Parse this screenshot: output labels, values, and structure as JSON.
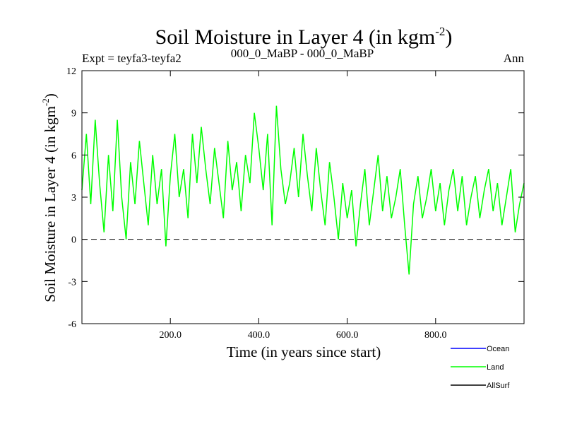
{
  "chart_data": {
    "type": "line",
    "title": "Soil Moisture in Layer 4 (in kgm",
    "title_sup": "-2",
    "title_close": ")",
    "subtitle_left": "Expt = teyfa3-teyfa2",
    "subtitle_center": "000_0_MaBP - 000_0_MaBP",
    "subtitle_right": "Ann",
    "xlabel": "Time (in years since start)",
    "ylabel": "Soil Moisture in Layer 4 (in kgm",
    "ylabel_sup": "-2",
    "ylabel_close": ")",
    "xlim": [
      0,
      1000
    ],
    "ylim": [
      -6,
      12
    ],
    "x_ticks": [
      200,
      400,
      600,
      800
    ],
    "x_tick_labels": [
      "200.0",
      "400.0",
      "600.0",
      "800.0"
    ],
    "y_ticks": [
      -6,
      -3,
      0,
      3,
      6,
      9,
      12
    ],
    "y_tick_labels": [
      "-6",
      "-3",
      "0",
      "3",
      "6",
      "9",
      "12"
    ],
    "zero_line": 0,
    "series": [
      {
        "name": "Land",
        "color": "#00ff00",
        "x": [
          0,
          10,
          20,
          30,
          40,
          50,
          60,
          70,
          80,
          90,
          100,
          110,
          120,
          130,
          140,
          150,
          160,
          170,
          180,
          190,
          200,
          210,
          220,
          230,
          240,
          250,
          260,
          270,
          280,
          290,
          300,
          310,
          320,
          330,
          340,
          350,
          360,
          370,
          380,
          390,
          400,
          410,
          420,
          430,
          440,
          450,
          460,
          470,
          480,
          490,
          500,
          510,
          520,
          530,
          540,
          550,
          560,
          570,
          580,
          590,
          600,
          610,
          620,
          630,
          640,
          650,
          660,
          670,
          680,
          690,
          700,
          710,
          720,
          730,
          740,
          750,
          760,
          770,
          780,
          790,
          800,
          810,
          820,
          830,
          840,
          850,
          860,
          870,
          880,
          890,
          900,
          910,
          920,
          930,
          940,
          950,
          960,
          970,
          980,
          990,
          1000
        ],
        "values": [
          3.5,
          7.5,
          2.5,
          8.5,
          4.0,
          0.5,
          6.0,
          2.0,
          8.5,
          3.0,
          0.0,
          5.5,
          2.5,
          7.0,
          4.0,
          1.0,
          6.0,
          2.5,
          5.0,
          -0.5,
          4.5,
          7.5,
          3.0,
          5.0,
          1.5,
          7.5,
          4.0,
          8.0,
          5.0,
          2.5,
          6.5,
          4.0,
          1.5,
          7.0,
          3.5,
          5.5,
          2.0,
          6.0,
          4.0,
          9.0,
          6.5,
          3.5,
          7.5,
          1.0,
          9.5,
          5.0,
          2.5,
          4.0,
          6.5,
          3.0,
          7.5,
          4.5,
          2.0,
          6.5,
          3.5,
          1.0,
          5.5,
          3.0,
          0.0,
          4.0,
          1.5,
          3.5,
          -0.5,
          2.5,
          5.0,
          1.0,
          3.5,
          6.0,
          2.0,
          4.5,
          1.5,
          3.0,
          5.0,
          1.0,
          -2.5,
          2.5,
          4.5,
          1.5,
          3.0,
          5.0,
          2.0,
          4.0,
          1.0,
          3.5,
          5.0,
          2.0,
          4.5,
          1.0,
          3.0,
          4.5,
          1.5,
          3.5,
          5.0,
          2.0,
          4.0,
          1.0,
          3.0,
          5.0,
          0.5,
          2.5,
          4.0
        ]
      }
    ],
    "legend": [
      {
        "name": "Ocean",
        "color": "#0000ff"
      },
      {
        "name": "Land",
        "color": "#00ff00"
      },
      {
        "name": "AllSurf",
        "color": "#000000"
      }
    ]
  }
}
